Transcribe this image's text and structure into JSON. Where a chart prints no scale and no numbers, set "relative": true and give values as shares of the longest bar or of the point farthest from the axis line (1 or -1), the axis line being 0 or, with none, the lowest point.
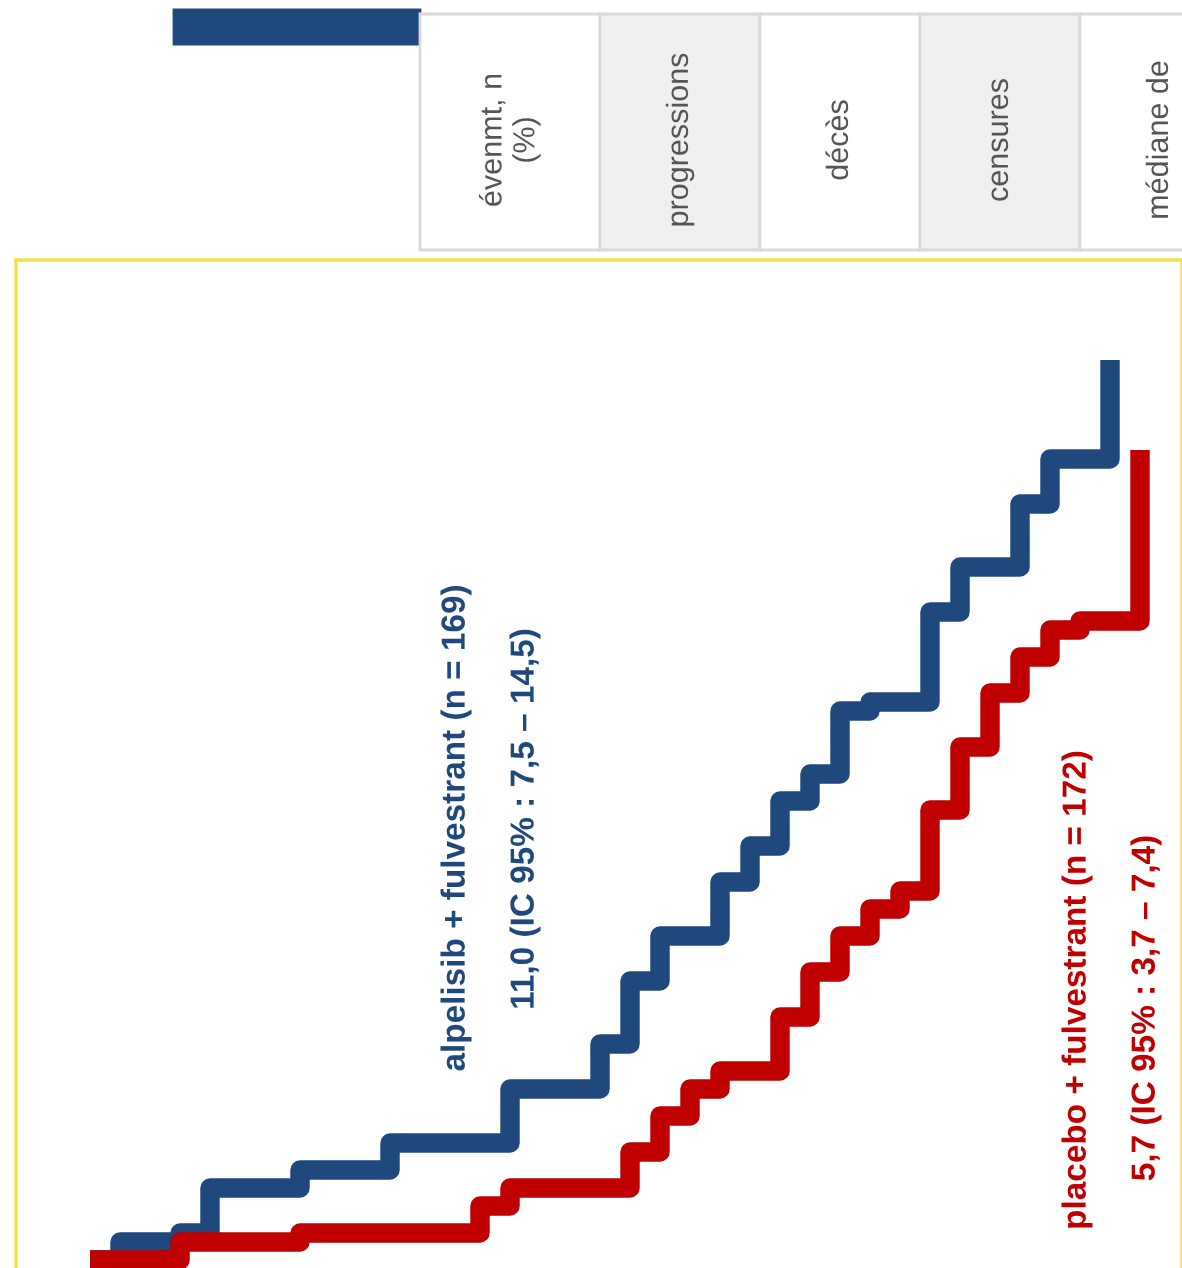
{
  "chart_data": {
    "type": "step",
    "relative": true,
    "legend": false,
    "line_style": "solid",
    "marker": "none",
    "categories": [
      null,
      null,
      null,
      null,
      null,
      null,
      null,
      null,
      null,
      null,
      null,
      null,
      null,
      null,
      null,
      null,
      null,
      null,
      null,
      null,
      null,
      null,
      null,
      null,
      null,
      null,
      null,
      null,
      null,
      null,
      null,
      null,
      null,
      null,
      null,
      null
    ],
    "series": [
      {
        "name": "alpelisib + fulvestrant (n = 169)",
        "color": "#1f497d",
        "values": [
          0,
          0.02,
          0.02,
          0.03,
          0.08,
          0.08,
          0.08,
          0.1,
          0.1,
          0.1,
          0.13,
          0.13,
          0.13,
          0.13,
          0.19,
          0.19,
          0.19,
          0.24,
          0.31,
          0.36,
          0.36,
          0.42,
          0.46,
          0.51,
          0.54,
          0.61,
          0.62,
          0.62,
          0.72,
          0.77,
          0.77,
          0.84,
          0.89,
          0.89,
          1,
          null
        ]
      },
      {
        "name": "placebo + fulvestrant (n = 172)",
        "color": "#c00000",
        "values": [
          0,
          0,
          0,
          0.02,
          0.02,
          0.02,
          0.02,
          0.03,
          0.03,
          0.03,
          0.03,
          0.03,
          0.03,
          0.06,
          0.08,
          0.08,
          0.08,
          0.08,
          0.12,
          0.16,
          0.19,
          0.21,
          0.21,
          0.27,
          0.32,
          0.36,
          0.39,
          0.41,
          0.5,
          0.57,
          0.63,
          0.67,
          0.7,
          0.71,
          0.71,
          0.9
        ]
      }
    ],
    "annotations": [
      "11,0 (IC 95% : 7,5 – 14,5)",
      "5,7 (IC 95% : 3,7 – 7,4)",
      "évenmt, n\n(%)",
      "progressions",
      "décès",
      "censures",
      "médiane de"
    ]
  }
}
